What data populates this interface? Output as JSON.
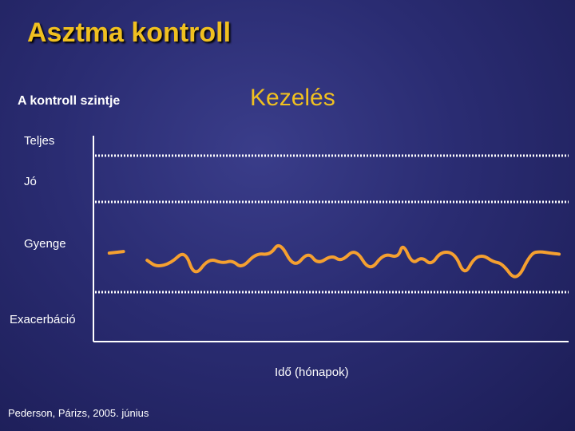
{
  "title": "Asztma kontroll",
  "citation": "Pederson, Párizs, 2005. június",
  "colors": {
    "title": "#f0c020",
    "line": "#f5a030",
    "grid": "#ffffff",
    "background": "#2a2c72"
  },
  "chart_data": {
    "type": "line",
    "title": "Kezelés",
    "ylabel": "A kontroll szintje",
    "xlabel": "Idő (hónapok)",
    "y_levels": [
      "Teljes",
      "Jó",
      "Gyenge",
      "Exacerbáció"
    ],
    "x_ticks": "none",
    "xlim": [
      0,
      100
    ],
    "ylim": [
      0,
      4
    ],
    "grid": "dotted horizontal lines between levels",
    "series": [
      {
        "x": [
          3,
          6,
          11,
          13,
          16,
          19,
          21,
          24,
          27,
          29,
          31,
          34,
          37,
          39,
          42,
          45,
          47,
          50,
          52,
          55,
          58,
          61,
          64,
          65,
          67,
          69,
          71,
          73,
          76,
          78,
          80,
          82,
          84,
          86,
          89,
          92,
          94,
          96,
          98
        ],
        "y": [
          1.72,
          1.75,
          1.58,
          1.45,
          1.52,
          1.78,
          1.25,
          1.62,
          1.52,
          1.58,
          1.42,
          1.72,
          1.68,
          1.95,
          1.42,
          1.75,
          1.5,
          1.68,
          1.55,
          1.82,
          1.35,
          1.72,
          1.62,
          1.92,
          1.5,
          1.65,
          1.48,
          1.75,
          1.72,
          1.28,
          1.62,
          1.68,
          1.55,
          1.52,
          1.15,
          1.72,
          1.75,
          1.72,
          1.7
        ]
      }
    ]
  }
}
